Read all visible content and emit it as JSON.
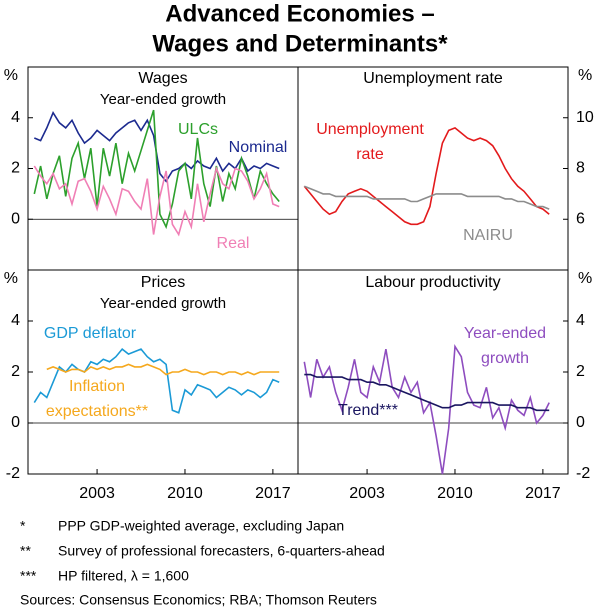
{
  "title": [
    "Advanced Economies –",
    "Wages and Determinants*"
  ],
  "chart_data": [
    {
      "type": "line",
      "title": "Wages",
      "subtitle": "Year-ended growth",
      "unit": "%",
      "xlim": [
        1997.5,
        2019
      ],
      "ylim": [
        -2,
        6
      ],
      "yticks": [
        0,
        2,
        4
      ],
      "x": [
        1998,
        1998.5,
        1999,
        1999.5,
        2000,
        2000.5,
        2001,
        2001.5,
        2002,
        2002.5,
        2003,
        2003.5,
        2004,
        2004.5,
        2005,
        2005.5,
        2006,
        2006.5,
        2007,
        2007.5,
        2008,
        2008.5,
        2009,
        2009.5,
        2010,
        2010.5,
        2011,
        2011.5,
        2012,
        2012.5,
        2013,
        2013.5,
        2014,
        2014.5,
        2015,
        2015.5,
        2016,
        2016.5,
        2017,
        2017.5
      ],
      "series": [
        {
          "name": "Nominal",
          "color": "#1c2a8f",
          "values": [
            3.2,
            3.1,
            3.6,
            4.2,
            3.8,
            3.6,
            3.9,
            3.4,
            3.0,
            3.2,
            3.5,
            3.3,
            3.1,
            3.4,
            3.6,
            3.8,
            3.9,
            3.5,
            3.9,
            3.3,
            1.8,
            1.5,
            1.9,
            2.0,
            2.2,
            2.0,
            2.3,
            2.1,
            2.0,
            2.4,
            1.9,
            2.2,
            2.0,
            2.4,
            1.9,
            2.1,
            2.0,
            2.2,
            2.1,
            2.0
          ]
        },
        {
          "name": "ULCs",
          "color": "#2ca02c",
          "values": [
            1.0,
            2.1,
            0.8,
            1.8,
            2.5,
            0.9,
            2.4,
            3.0,
            1.6,
            2.8,
            0.5,
            2.8,
            1.7,
            3.0,
            1.4,
            2.6,
            1.9,
            2.7,
            3.5,
            4.3,
            0.2,
            -0.3,
            0.6,
            1.9,
            2.2,
            0.8,
            3.2,
            1.4,
            0.5,
            2.1,
            0.7,
            1.8,
            1.2,
            2.4,
            1.7,
            0.8,
            1.9,
            1.4,
            1.0,
            0.7
          ]
        },
        {
          "name": "Real",
          "color": "#f07fb5",
          "values": [
            2.1,
            1.7,
            1.4,
            1.8,
            1.2,
            1.4,
            0.6,
            1.5,
            1.6,
            1.1,
            0.4,
            1.3,
            0.8,
            0.2,
            1.2,
            1.1,
            0.7,
            0.4,
            1.6,
            -0.6,
            0.9,
            1.9,
            -0.2,
            -0.6,
            0.3,
            -0.3,
            1.4,
            -0.1,
            1.0,
            2.0,
            1.4,
            1.2,
            2.0,
            1.9,
            1.5,
            0.8,
            1.2,
            1.8,
            0.6,
            0.5
          ]
        }
      ]
    },
    {
      "type": "line",
      "title": "Unemployment rate",
      "unit": "%",
      "xlim": [
        1997.5,
        2019
      ],
      "ylim": [
        4,
        12
      ],
      "yticks": [
        6,
        8,
        10
      ],
      "x": [
        1998,
        1998.5,
        1999,
        1999.5,
        2000,
        2000.5,
        2001,
        2001.5,
        2002,
        2002.5,
        2003,
        2003.5,
        2004,
        2004.5,
        2005,
        2005.5,
        2006,
        2006.5,
        2007,
        2007.5,
        2008,
        2008.5,
        2009,
        2009.5,
        2010,
        2010.5,
        2011,
        2011.5,
        2012,
        2012.5,
        2013,
        2013.5,
        2014,
        2014.5,
        2015,
        2015.5,
        2016,
        2016.5,
        2017,
        2017.5
      ],
      "series": [
        {
          "name": "Unemployment rate",
          "color": "#e31a1c",
          "values": [
            7.3,
            7.0,
            6.7,
            6.4,
            6.2,
            6.3,
            6.7,
            7.0,
            7.1,
            7.2,
            7.1,
            6.9,
            6.7,
            6.5,
            6.3,
            6.1,
            5.9,
            5.8,
            5.8,
            5.9,
            6.5,
            7.8,
            9.0,
            9.5,
            9.6,
            9.4,
            9.2,
            9.1,
            9.2,
            9.1,
            8.9,
            8.5,
            8.0,
            7.6,
            7.3,
            7.1,
            6.8,
            6.5,
            6.4,
            6.2
          ]
        },
        {
          "name": "NAIRU",
          "color": "#8c8c8c",
          "values": [
            7.3,
            7.2,
            7.1,
            7.0,
            7.0,
            6.9,
            6.9,
            6.9,
            6.9,
            6.9,
            6.9,
            6.8,
            6.8,
            6.8,
            6.8,
            6.8,
            6.8,
            6.7,
            6.7,
            6.8,
            6.9,
            7.0,
            7.0,
            7.0,
            7.0,
            7.0,
            6.9,
            6.9,
            6.9,
            6.9,
            6.9,
            6.9,
            6.8,
            6.8,
            6.7,
            6.7,
            6.6,
            6.5,
            6.5,
            6.4
          ]
        }
      ]
    },
    {
      "type": "line",
      "title": "Prices",
      "subtitle": "Year-ended growth",
      "unit": "%",
      "xlim": [
        1997.5,
        2019
      ],
      "ylim": [
        -2,
        6
      ],
      "yticks": [
        -2,
        0,
        2,
        4
      ],
      "xticks": [
        2003,
        2010,
        2017
      ],
      "x": [
        1998,
        1998.5,
        1999,
        1999.5,
        2000,
        2000.5,
        2001,
        2001.5,
        2002,
        2002.5,
        2003,
        2003.5,
        2004,
        2004.5,
        2005,
        2005.5,
        2006,
        2006.5,
        2007,
        2007.5,
        2008,
        2008.5,
        2009,
        2009.5,
        2010,
        2010.5,
        2011,
        2011.5,
        2012,
        2012.5,
        2013,
        2013.5,
        2014,
        2014.5,
        2015,
        2015.5,
        2016,
        2016.5,
        2017,
        2017.5
      ],
      "series": [
        {
          "name": "GDP deflator",
          "color": "#1b9ad6",
          "values": [
            0.8,
            1.2,
            1.0,
            1.6,
            2.2,
            2.0,
            2.3,
            2.1,
            2.0,
            2.4,
            2.3,
            2.5,
            2.4,
            2.6,
            2.9,
            2.7,
            2.8,
            2.9,
            2.6,
            2.4,
            2.5,
            2.3,
            0.5,
            0.4,
            1.3,
            1.1,
            1.5,
            1.4,
            1.3,
            1.0,
            1.2,
            1.4,
            1.3,
            1.1,
            1.3,
            1.2,
            1.0,
            1.2,
            1.7,
            1.6
          ]
        },
        {
          "name": "Inflation expectations**",
          "color": "#f5a81d",
          "values": [
            null,
            null,
            2.1,
            2.2,
            2.1,
            2.0,
            2.1,
            2.1,
            2.0,
            2.2,
            2.1,
            2.2,
            2.1,
            2.2,
            2.2,
            2.3,
            2.2,
            2.2,
            2.3,
            2.2,
            2.1,
            1.9,
            2.0,
            2.0,
            2.1,
            2.0,
            2.0,
            1.9,
            2.0,
            2.0,
            1.9,
            2.0,
            2.0,
            1.9,
            2.0,
            1.9,
            2.0,
            2.0,
            2.0,
            2.0
          ]
        }
      ]
    },
    {
      "type": "line",
      "title": "Labour productivity",
      "unit": "%",
      "xlim": [
        1997.5,
        2019
      ],
      "ylim": [
        -2,
        6
      ],
      "yticks": [
        -2,
        0,
        2,
        4
      ],
      "xticks": [
        2003,
        2010,
        2017
      ],
      "x": [
        1998,
        1998.5,
        1999,
        1999.5,
        2000,
        2000.5,
        2001,
        2001.5,
        2002,
        2002.5,
        2003,
        2003.5,
        2004,
        2004.5,
        2005,
        2005.5,
        2006,
        2006.5,
        2007,
        2007.5,
        2008,
        2008.5,
        2009,
        2009.5,
        2010,
        2010.5,
        2011,
        2011.5,
        2012,
        2012.5,
        2013,
        2013.5,
        2014,
        2014.5,
        2015,
        2015.5,
        2016,
        2016.5,
        2017,
        2017.5
      ],
      "series": [
        {
          "name": "Year-ended growth",
          "color": "#8e4dbf",
          "values": [
            2.4,
            1.0,
            2.5,
            1.8,
            2.2,
            1.2,
            0.5,
            1.4,
            2.5,
            1.2,
            1.0,
            2.2,
            1.6,
            2.9,
            1.4,
            1.0,
            1.8,
            1.2,
            1.6,
            0.4,
            0.8,
            -0.5,
            -2.0,
            -0.2,
            3.0,
            2.6,
            1.2,
            0.7,
            0.6,
            1.4,
            0.2,
            0.6,
            -0.2,
            0.9,
            0.5,
            0.3,
            1.0,
            0.0,
            0.3,
            0.8
          ]
        },
        {
          "name": "Trend***",
          "color": "#1a1660",
          "values": [
            1.9,
            1.9,
            1.8,
            1.8,
            1.8,
            1.8,
            1.8,
            1.7,
            1.7,
            1.7,
            1.6,
            1.6,
            1.5,
            1.5,
            1.4,
            1.3,
            1.2,
            1.1,
            1.0,
            0.9,
            0.8,
            0.7,
            0.6,
            0.6,
            0.7,
            0.7,
            0.8,
            0.8,
            0.8,
            0.8,
            0.8,
            0.7,
            0.7,
            0.7,
            0.6,
            0.6,
            0.6,
            0.5,
            0.5,
            0.5
          ]
        }
      ]
    }
  ],
  "notes": [
    {
      "marker": "*",
      "text": "PPP GDP-weighted average, excluding Japan"
    },
    {
      "marker": "**",
      "text": "Survey of professional forecasters, 6-quarters-ahead"
    },
    {
      "marker": "***",
      "text": "HP filtered, λ = 1,600"
    }
  ],
  "sources": "Sources: Consensus Economics; RBA; Thomson Reuters"
}
